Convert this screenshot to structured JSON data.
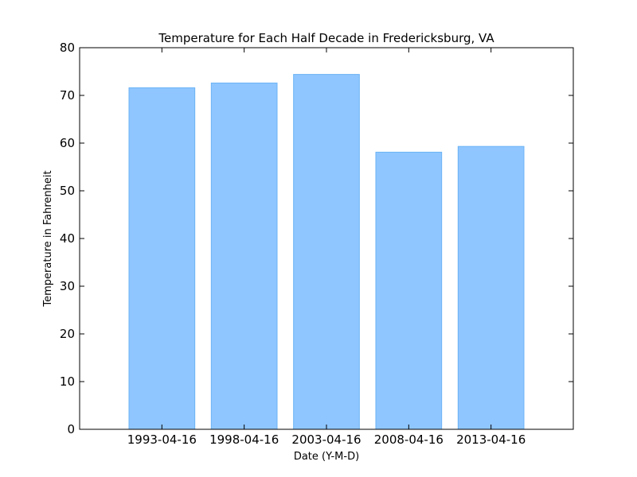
{
  "chart_data": {
    "type": "bar",
    "title": "Temperature for Each Half Decade in Fredericksburg, VA",
    "xlabel": "Date (Y-M-D)",
    "ylabel": "Temperature in Fahrenheit",
    "categories": [
      "1993-04-16",
      "1998-04-16",
      "2003-04-16",
      "2008-04-16",
      "2013-04-16"
    ],
    "values": [
      71.6,
      72.6,
      74.4,
      58.1,
      59.3
    ],
    "ylim": [
      0,
      80
    ],
    "yticks": [
      0,
      10,
      20,
      30,
      40,
      50,
      60,
      70,
      80
    ],
    "grid": false,
    "bar_color": "#8fc6ff",
    "bar_edge_color": "#6bb3f5"
  }
}
